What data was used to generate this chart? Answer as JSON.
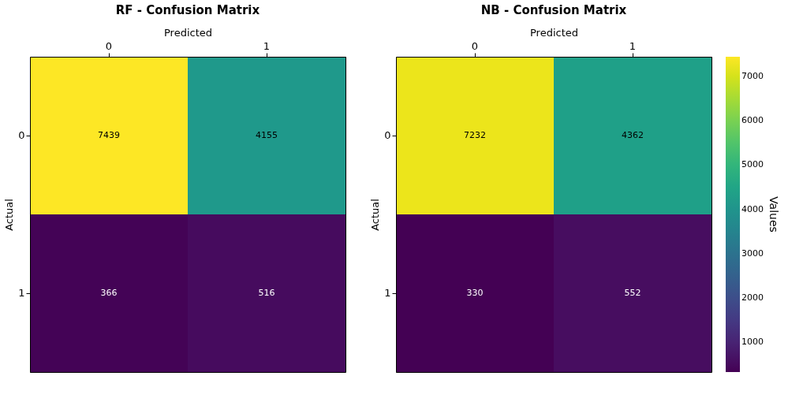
{
  "chart_data": [
    {
      "type": "heatmap",
      "title": "RF - Confusion Matrix",
      "xlabel": "Predicted",
      "ylabel": "Actual",
      "categories": [
        "0",
        "1"
      ],
      "y_categories": [
        "0",
        "1"
      ],
      "cells": [
        [
          7439,
          4155
        ],
        [
          366,
          516
        ]
      ],
      "data_labels": true
    },
    {
      "type": "heatmap",
      "title": "NB - Confusion Matrix",
      "xlabel": "Predicted",
      "ylabel": "Actual",
      "categories": [
        "0",
        "1"
      ],
      "y_categories": [
        "0",
        "1"
      ],
      "cells": [
        [
          7232,
          4362
        ],
        [
          330,
          552
        ]
      ],
      "data_labels": true,
      "clim": [
        330,
        7439
      ],
      "cticks": [
        1000,
        2000,
        3000,
        4000,
        5000,
        6000,
        7000
      ],
      "clabel": "Values"
    }
  ]
}
